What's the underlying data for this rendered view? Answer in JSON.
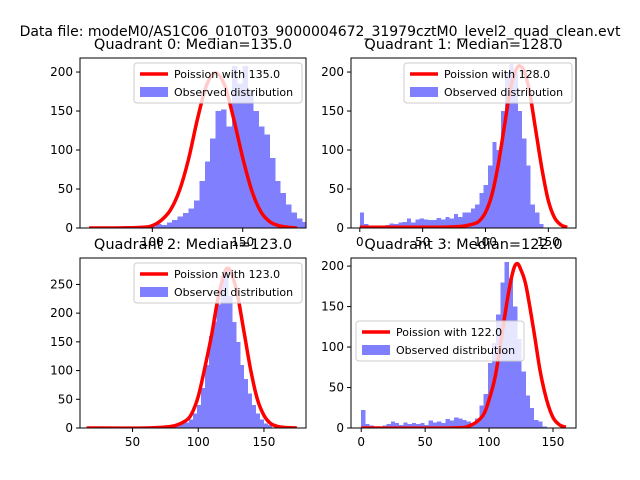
{
  "suptitle": "Data file: modeM0/AS1C06_010T03_9000004672_31979cztM0_level2_quad_clean.evt",
  "colors": {
    "line": "#ff0000",
    "bar": "#8080ff"
  },
  "chart_data": [
    {
      "type": "bar",
      "title": "Quadrant 0: Median=135.0",
      "median": 135,
      "xlim": [
        60,
        185
      ],
      "ylim": [
        0,
        218
      ],
      "xticks": [
        100,
        150
      ],
      "yticks": [
        0,
        50,
        100,
        150,
        200
      ],
      "legend": {
        "placement": "top-right",
        "line_label": "Poission with 135.0",
        "bar_label": "Observed distribution"
      },
      "bin_width": 3,
      "bins_start": 99,
      "counts": [
        2,
        5,
        4,
        7,
        10,
        15,
        19,
        25,
        35,
        60,
        85,
        115,
        150,
        152,
        130,
        208,
        185,
        208,
        175,
        150,
        130,
        120,
        90,
        60,
        45,
        30,
        20,
        12,
        8,
        5
      ],
      "poisson": {
        "x": [
          65,
          80,
          95,
          100,
          105,
          110,
          115,
          120,
          125,
          130,
          135,
          140,
          145,
          150,
          155,
          160,
          165,
          170,
          175,
          180
        ],
        "y": [
          0,
          0,
          1,
          3,
          10,
          23,
          48,
          88,
          140,
          183,
          199,
          183,
          140,
          90,
          48,
          21,
          8,
          3,
          1,
          0
        ]
      }
    },
    {
      "type": "bar",
      "title": "Quadrant 1: Median=128.0",
      "median": 128,
      "xlim": [
        -7,
        172
      ],
      "ylim": [
        0,
        218
      ],
      "xticks": [
        0,
        50,
        100,
        150
      ],
      "yticks": [
        0,
        50,
        100,
        150,
        200
      ],
      "legend": {
        "placement": "top-right",
        "line_label": "Poission with 128.0",
        "bar_label": "Observed distribution"
      },
      "bin_width": 3.4,
      "bins_start": 0,
      "counts": [
        20,
        5,
        2,
        1,
        2,
        3,
        4,
        6,
        5,
        7,
        8,
        12,
        7,
        11,
        12,
        11,
        10,
        10,
        13,
        11,
        14,
        12,
        18,
        14,
        20,
        20,
        25,
        30,
        45,
        55,
        80,
        110,
        100,
        150,
        200,
        210,
        200,
        150,
        115,
        80,
        30,
        20,
        5
      ],
      "poisson": {
        "x": [
          0,
          60,
          80,
          90,
          95,
          100,
          105,
          110,
          115,
          120,
          125,
          128,
          131,
          135,
          140,
          145,
          150,
          155,
          160,
          165
        ],
        "y": [
          1,
          1,
          2,
          5,
          9,
          20,
          42,
          80,
          130,
          180,
          205,
          207,
          200,
          175,
          125,
          75,
          35,
          13,
          4,
          1
        ]
      }
    },
    {
      "type": "bar",
      "title": "Quadrant 2: Median=123.0",
      "median": 123,
      "xlim": [
        10,
        182
      ],
      "ylim": [
        0,
        296
      ],
      "xticks": [
        50,
        100,
        150
      ],
      "yticks": [
        0,
        50,
        100,
        150,
        200,
        250
      ],
      "legend": {
        "placement": "top-right",
        "line_label": "Poission with 123.0",
        "bar_label": "Observed distribution"
      },
      "bin_width": 3,
      "bins_start": 81,
      "counts": [
        3,
        5,
        8,
        10,
        15,
        25,
        40,
        70,
        110,
        160,
        185,
        215,
        265,
        275,
        230,
        185,
        150,
        110,
        85,
        60,
        40,
        25,
        15,
        8,
        5
      ],
      "poisson": {
        "x": [
          15,
          60,
          80,
          90,
          95,
          100,
          105,
          110,
          115,
          120,
          123,
          126,
          130,
          135,
          140,
          145,
          150,
          155,
          160,
          165,
          175
        ],
        "y": [
          0,
          0,
          3,
          12,
          25,
          55,
          105,
          160,
          225,
          270,
          278,
          265,
          230,
          165,
          100,
          50,
          22,
          8,
          3,
          1,
          0
        ]
      }
    },
    {
      "type": "bar",
      "title": "Quadrant 3: Median=122.0",
      "median": 122,
      "xlim": [
        -8,
        168
      ],
      "ylim": [
        0,
        210
      ],
      "xticks": [
        0,
        50,
        100,
        150
      ],
      "yticks": [
        0,
        50,
        100,
        150,
        200
      ],
      "legend": {
        "placement": "center-left",
        "line_label": "Poission with 122.0",
        "bar_label": "Observed distribution"
      },
      "bin_width": 3.3,
      "bins_start": 0,
      "counts": [
        22,
        5,
        3,
        2,
        1,
        3,
        5,
        8,
        6,
        4,
        7,
        5,
        6,
        5,
        6,
        4,
        9,
        7,
        8,
        6,
        11,
        9,
        13,
        12,
        10,
        8,
        4,
        12,
        28,
        42,
        80,
        105,
        140,
        180,
        205,
        185,
        150,
        110,
        70,
        40,
        25,
        10,
        8,
        2
      ],
      "poisson": {
        "x": [
          0,
          70,
          85,
          95,
          100,
          105,
          110,
          115,
          119,
          122,
          125,
          129,
          135,
          140,
          145,
          150,
          155,
          160
        ],
        "y": [
          0,
          0,
          3,
          15,
          35,
          65,
          115,
          165,
          195,
          203,
          195,
          175,
          120,
          70,
          35,
          13,
          4,
          1
        ]
      }
    }
  ]
}
